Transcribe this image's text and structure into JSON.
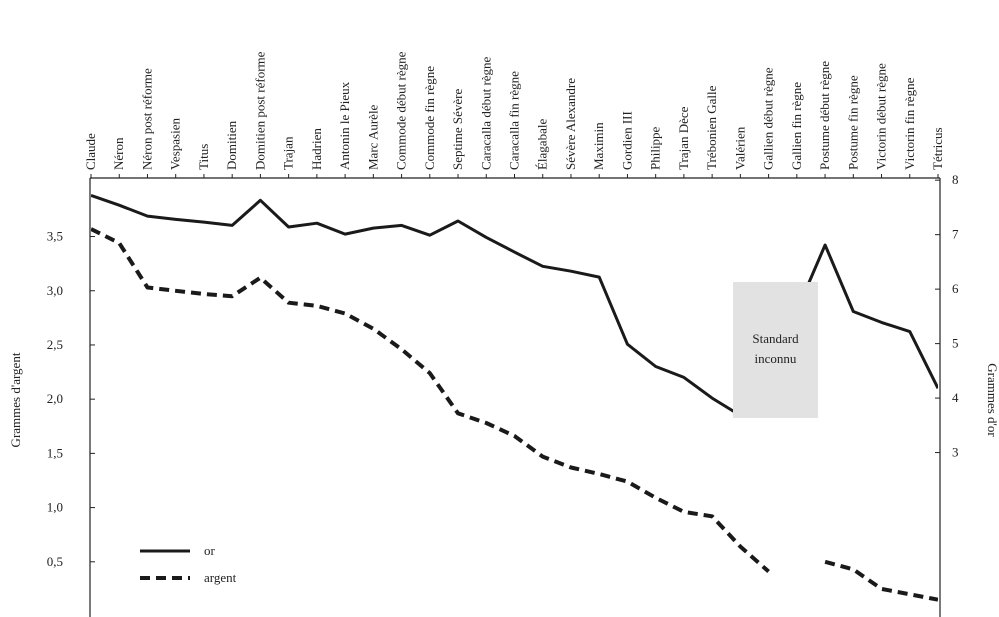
{
  "chart_data": {
    "type": "line",
    "categories": [
      "Claude",
      "Néron",
      "Néron post réforme",
      "Vespasien",
      "Titus",
      "Domitien",
      "Domitien post réforme",
      "Trajan",
      "Hadrien",
      "Antonin le Pieux",
      "Marc Aurèle",
      "Commode début règne",
      "Commode fin règne",
      "Septime Sévère",
      "Caracalla début règne",
      "Caracalla fin règne",
      "Élagabale",
      "Sévère Alexandre",
      "Maximin",
      "Gordien III",
      "Philippe",
      "Trajan Dèce",
      "Trébonien Galle",
      "Valérien",
      "Gallien début règne",
      "Gallien fin règne",
      "Postume début règne",
      "Postume fin règne",
      "Victorin début règne",
      "Victorin fin règne",
      "Tétricus"
    ],
    "series": [
      {
        "name": "or",
        "color": "#1a1a1a",
        "axis": "y2",
        "dash": false,
        "values": [
          7.72,
          7.54,
          7.34,
          7.28,
          7.23,
          7.17,
          7.63,
          7.14,
          7.21,
          7.01,
          7.12,
          7.17,
          6.99,
          7.25,
          6.95,
          6.68,
          6.42,
          6.33,
          6.22,
          4.99,
          4.58,
          4.38,
          4.0,
          3.68,
          null,
          5.6,
          6.81,
          5.59,
          5.39,
          5.22,
          4.18
        ]
      },
      {
        "name": "argent",
        "color": "#1a1a1a",
        "dash": true,
        "values": [
          3.57,
          3.44,
          3.03,
          3.0,
          2.97,
          2.95,
          3.12,
          2.89,
          2.86,
          2.79,
          2.65,
          2.46,
          2.24,
          1.87,
          1.78,
          1.66,
          1.47,
          1.37,
          1.31,
          1.24,
          1.09,
          0.96,
          0.92,
          0.64,
          0.41,
          null,
          0.5,
          0.43,
          0.25,
          0.2,
          0.15
        ]
      }
    ],
    "ylabel": "Grammes d'argent",
    "y2label": "Grammes d'or",
    "ylim": [
      0,
      4.04
    ],
    "yticks": [
      {
        "value": 0.5,
        "label": "0,5"
      },
      {
        "value": 1.0,
        "label": "1,0"
      },
      {
        "value": 1.5,
        "label": "1,5"
      },
      {
        "value": 2.0,
        "label": "2,0"
      },
      {
        "value": 2.5,
        "label": "2,5"
      },
      {
        "value": 3.0,
        "label": "3,0"
      },
      {
        "value": 3.5,
        "label": "3,5"
      }
    ],
    "y2lim": [
      0,
      8.04
    ],
    "y2ticks": [
      3,
      4,
      5,
      6,
      7,
      8
    ],
    "annotation": [
      "Standard",
      "inconnu"
    ],
    "legend": "lower left",
    "grid": false
  }
}
